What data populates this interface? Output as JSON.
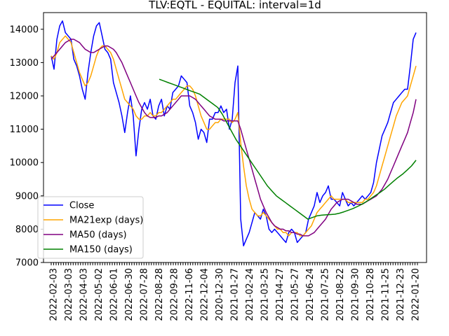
{
  "chart_data": {
    "type": "line",
    "title": "TLV:EQTL - EQUITAL: interval=1d",
    "xlabel": "",
    "ylabel": "",
    "ylim": [
      7000,
      14500
    ],
    "y_ticks": [
      7000,
      8000,
      9000,
      10000,
      11000,
      12000,
      13000,
      14000
    ],
    "y_tick_labels": [
      "7000",
      "8000",
      "9000",
      "10000",
      "11000",
      "12000",
      "13000",
      "14000"
    ],
    "x_tick_labels": [
      "2022-02-03",
      "2022-03-03",
      "2022-04-03",
      "2022-05-02",
      "2022-06-01",
      "2022-06-30",
      "2022-07-28",
      "2022-08-28",
      "2022-09-28",
      "2022-11-06",
      "2022-12-04",
      "2020-12-30",
      "2021-01-27",
      "2021-02-24",
      "2021-03-25",
      "2021-04-27",
      "2021-05-27",
      "2021-06-24",
      "2021-07-25",
      "2021-08-22",
      "2021-09-30",
      "2021-10-28",
      "2021-11-25",
      "2021-12-23",
      "2022-01-20"
    ],
    "grid": false,
    "legend_position": "lower-left",
    "series": [
      {
        "name": "Close",
        "color": "#0000ff",
        "values": [
          13200,
          12800,
          13700,
          14100,
          14250,
          13900,
          13800,
          13700,
          13100,
          12900,
          12600,
          12200,
          11900,
          12700,
          13300,
          13800,
          14100,
          14200,
          13800,
          13400,
          13300,
          13100,
          12400,
          12100,
          11800,
          11400,
          10900,
          11500,
          12000,
          11400,
          10200,
          11000,
          11600,
          11800,
          11600,
          11900,
          11400,
          11300,
          11700,
          11900,
          11400,
          11700,
          11600,
          12100,
          12200,
          12300,
          12600,
          12500,
          12400,
          11700,
          11500,
          11200,
          10700,
          11000,
          10900,
          10600,
          11300,
          11300,
          11500,
          11500,
          11700,
          11500,
          11600,
          11000,
          11300,
          12400,
          12900,
          8300,
          7500,
          7700,
          7900,
          8200,
          8500,
          8400,
          8300,
          8600,
          8400,
          8000,
          7900,
          8000,
          7900,
          7800,
          7700,
          7600,
          7900,
          8000,
          7900,
          7600,
          7700,
          7800,
          7900,
          8300,
          8500,
          8700,
          9100,
          8800,
          9000,
          9100,
          9300,
          8900,
          8900,
          8800,
          8700,
          9100,
          8900,
          8700,
          8800,
          8700,
          8800,
          8900,
          9000,
          8900,
          9000,
          9100,
          9400,
          10000,
          10400,
          10800,
          11000,
          11200,
          11500,
          11800,
          11900,
          12000,
          12100,
          12200,
          12200,
          12900,
          13700,
          13900
        ]
      },
      {
        "name": "MA21exp (days)",
        "color": "#ffa500",
        "values": [
          13200,
          13100,
          13300,
          13600,
          13700,
          13800,
          13700,
          13600,
          13300,
          13000,
          12700,
          12500,
          12300,
          12400,
          12600,
          12900,
          13200,
          13400,
          13500,
          13500,
          13400,
          13300,
          13100,
          12800,
          12500,
          12200,
          11900,
          11800,
          11700,
          11600,
          11400,
          11300,
          11300,
          11400,
          11400,
          11500,
          11400,
          11400,
          11500,
          11500,
          11600,
          11700,
          11800,
          11900,
          11900,
          12000,
          12100,
          12200,
          12300,
          12300,
          12200,
          12000,
          11700,
          11400,
          11200,
          11000,
          11000,
          11100,
          11200,
          11200,
          11300,
          11300,
          11300,
          11300,
          11200,
          11300,
          11500,
          10600,
          9900,
          9300,
          8900,
          8600,
          8500,
          8400,
          8400,
          8500,
          8400,
          8300,
          8200,
          8100,
          8000,
          8000,
          7900,
          7900,
          7800,
          7900,
          7900,
          7900,
          7800,
          7800,
          7900,
          8000,
          8100,
          8300,
          8500,
          8600,
          8700,
          8800,
          8900,
          9000,
          8900,
          8900,
          8900,
          8900,
          8900,
          8800,
          8800,
          8800,
          8800,
          8800,
          8800,
          8900,
          8900,
          9000,
          9100,
          9300,
          9600,
          9900,
          10200,
          10500,
          10800,
          11100,
          11400,
          11600,
          11800,
          11900,
          12000,
          12300,
          12600,
          12900
        ]
      },
      {
        "name": "MA50 (days)",
        "color": "#800080",
        "values": [
          13100,
          13200,
          13300,
          13400,
          13500,
          13600,
          13650,
          13700,
          13700,
          13650,
          13600,
          13500,
          13400,
          13350,
          13300,
          13300,
          13350,
          13400,
          13450,
          13500,
          13500,
          13450,
          13400,
          13300,
          13150,
          13000,
          12800,
          12600,
          12400,
          12200,
          12000,
          11800,
          11650,
          11500,
          11400,
          11350,
          11350,
          11350,
          11400,
          11400,
          11450,
          11500,
          11600,
          11700,
          11800,
          11900,
          12000,
          12000,
          12000,
          12000,
          11950,
          11900,
          11800,
          11700,
          11600,
          11500,
          11400,
          11350,
          11300,
          11300,
          11300,
          11250,
          11250,
          11250,
          11250,
          11250,
          11250,
          11000,
          10700,
          10400,
          10100,
          9800,
          9500,
          9200,
          8900,
          8700,
          8500,
          8350,
          8200,
          8100,
          8050,
          8000,
          8000,
          7950,
          7950,
          7900,
          7900,
          7850,
          7850,
          7800,
          7800,
          7800,
          7850,
          7900,
          8000,
          8100,
          8200,
          8300,
          8450,
          8600,
          8700,
          8800,
          8850,
          8900,
          8900,
          8900,
          8850,
          8800,
          8750,
          8750,
          8750,
          8800,
          8850,
          8900,
          8950,
          9000,
          9100,
          9200,
          9350,
          9500,
          9700,
          9900,
          10100,
          10300,
          10500,
          10700,
          10900,
          11200,
          11500,
          11900
        ]
      },
      {
        "name": "MA150 (days)",
        "color": "#008000",
        "values": [
          12500,
          12450,
          12400,
          12350,
          12300,
          12250,
          12200,
          12150,
          12100,
          12050,
          11950,
          11850,
          11750,
          11650,
          11450,
          11200,
          10950,
          10700,
          10500,
          10300,
          10100,
          9900,
          9700,
          9500,
          9300,
          9150,
          9000,
          8900,
          8800,
          8700,
          8600,
          8500,
          8400,
          8300,
          8350,
          8400,
          8420,
          8430,
          8440,
          8450,
          8480,
          8520,
          8570,
          8620,
          8680,
          8750,
          8830,
          8920,
          9010,
          9100,
          9200,
          9320,
          9440,
          9550,
          9650,
          9770,
          9900,
          10070
        ]
      }
    ]
  }
}
